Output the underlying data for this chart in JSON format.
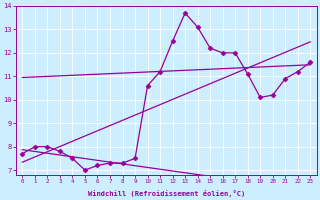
{
  "xlabel": "Windchill (Refroidissement éolien,°C)",
  "background_color": "#cceeff",
  "line_color": "#990099",
  "x_data": [
    0,
    1,
    2,
    3,
    4,
    5,
    6,
    7,
    8,
    9,
    10,
    11,
    12,
    13,
    14,
    15,
    16,
    17,
    18,
    19,
    20,
    21,
    22,
    23
  ],
  "y_data": [
    7.7,
    8.0,
    8.0,
    7.8,
    7.5,
    7.0,
    7.2,
    7.3,
    7.3,
    7.5,
    10.6,
    11.2,
    12.5,
    13.7,
    13.1,
    12.2,
    12.0,
    12.0,
    11.1,
    10.1,
    10.2,
    10.9,
    11.2,
    11.6
  ],
  "ylim": [
    6.8,
    14.0
  ],
  "xlim": [
    -0.5,
    23.5
  ],
  "yticks": [
    7,
    8,
    9,
    10,
    11,
    12,
    13,
    14
  ],
  "xticks": [
    0,
    1,
    2,
    3,
    4,
    5,
    6,
    7,
    8,
    9,
    10,
    11,
    12,
    13,
    14,
    15,
    16,
    17,
    18,
    19,
    20,
    21,
    22,
    23
  ],
  "marker": "D",
  "marker_size": 2.5,
  "line_width": 0.9
}
